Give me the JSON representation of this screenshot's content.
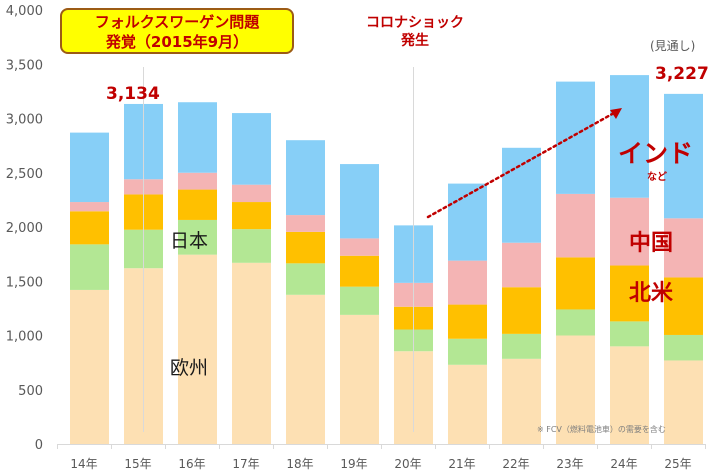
{
  "chart_data": {
    "type": "bar",
    "stacked": true,
    "title": "",
    "xlabel": "",
    "ylabel": "",
    "ylim": [
      0,
      4000
    ],
    "yticks": [
      0,
      500,
      1000,
      1500,
      2000,
      2500,
      3000,
      3500,
      4000
    ],
    "ytick_labels": [
      "0",
      "500",
      "1,000",
      "1,500",
      "2,000",
      "2,500",
      "3,000",
      "3,500",
      "4,000"
    ],
    "grid": false,
    "legend": "none (inline labels)",
    "categories": [
      "14年",
      "15年",
      "16年",
      "17年",
      "18年",
      "19年",
      "20年",
      "21年",
      "22年",
      "23年",
      "24年",
      "25年"
    ],
    "series": [
      {
        "name": "欧州",
        "color": "#fde0b3",
        "values": [
          1420,
          1620,
          1745,
          1670,
          1375,
          1190,
          855,
          730,
          785,
          1000,
          900,
          770
        ]
      },
      {
        "name": "日本",
        "color": "#b3e794",
        "values": [
          420,
          355,
          320,
          310,
          290,
          260,
          200,
          240,
          230,
          240,
          230,
          235
        ]
      },
      {
        "name": "北米",
        "color": "#ffc000",
        "values": [
          305,
          325,
          280,
          250,
          290,
          285,
          210,
          315,
          430,
          480,
          515,
          530
        ]
      },
      {
        "name": "中国",
        "color": "#f4b4b4",
        "values": [
          85,
          140,
          155,
          160,
          155,
          160,
          220,
          405,
          410,
          585,
          625,
          545
        ]
      },
      {
        "name": "インドなど",
        "color": "#87cff7",
        "values": [
          640,
          694,
          650,
          660,
          690,
          685,
          530,
          710,
          875,
          1035,
          1130,
          1147
        ]
      }
    ],
    "annotations": [
      {
        "text": "3,134",
        "category": "15年",
        "value": 3134
      },
      {
        "text": "3,227",
        "category": "25年",
        "value": 3227
      }
    ]
  },
  "title_box": {
    "line1": "フォルクスワーゲン問題",
    "line2": "発覚（2015年9月）"
  },
  "annotations": {
    "corona_line1": "コロナショック",
    "corona_line2": "発生",
    "forecast": "(見通し)",
    "value_15": "3,134",
    "value_25": "3,227",
    "india": "インド",
    "india_sub": "など",
    "china": "中国",
    "north_america": "北米",
    "japan": "日本",
    "europe": "欧州",
    "footnote": "※ FCV（燃料電池車）の需要を含む"
  },
  "colors": {
    "accent_red": "#c00000",
    "axis": "#d9d9d9",
    "marker_line": "#d9d9d9"
  }
}
